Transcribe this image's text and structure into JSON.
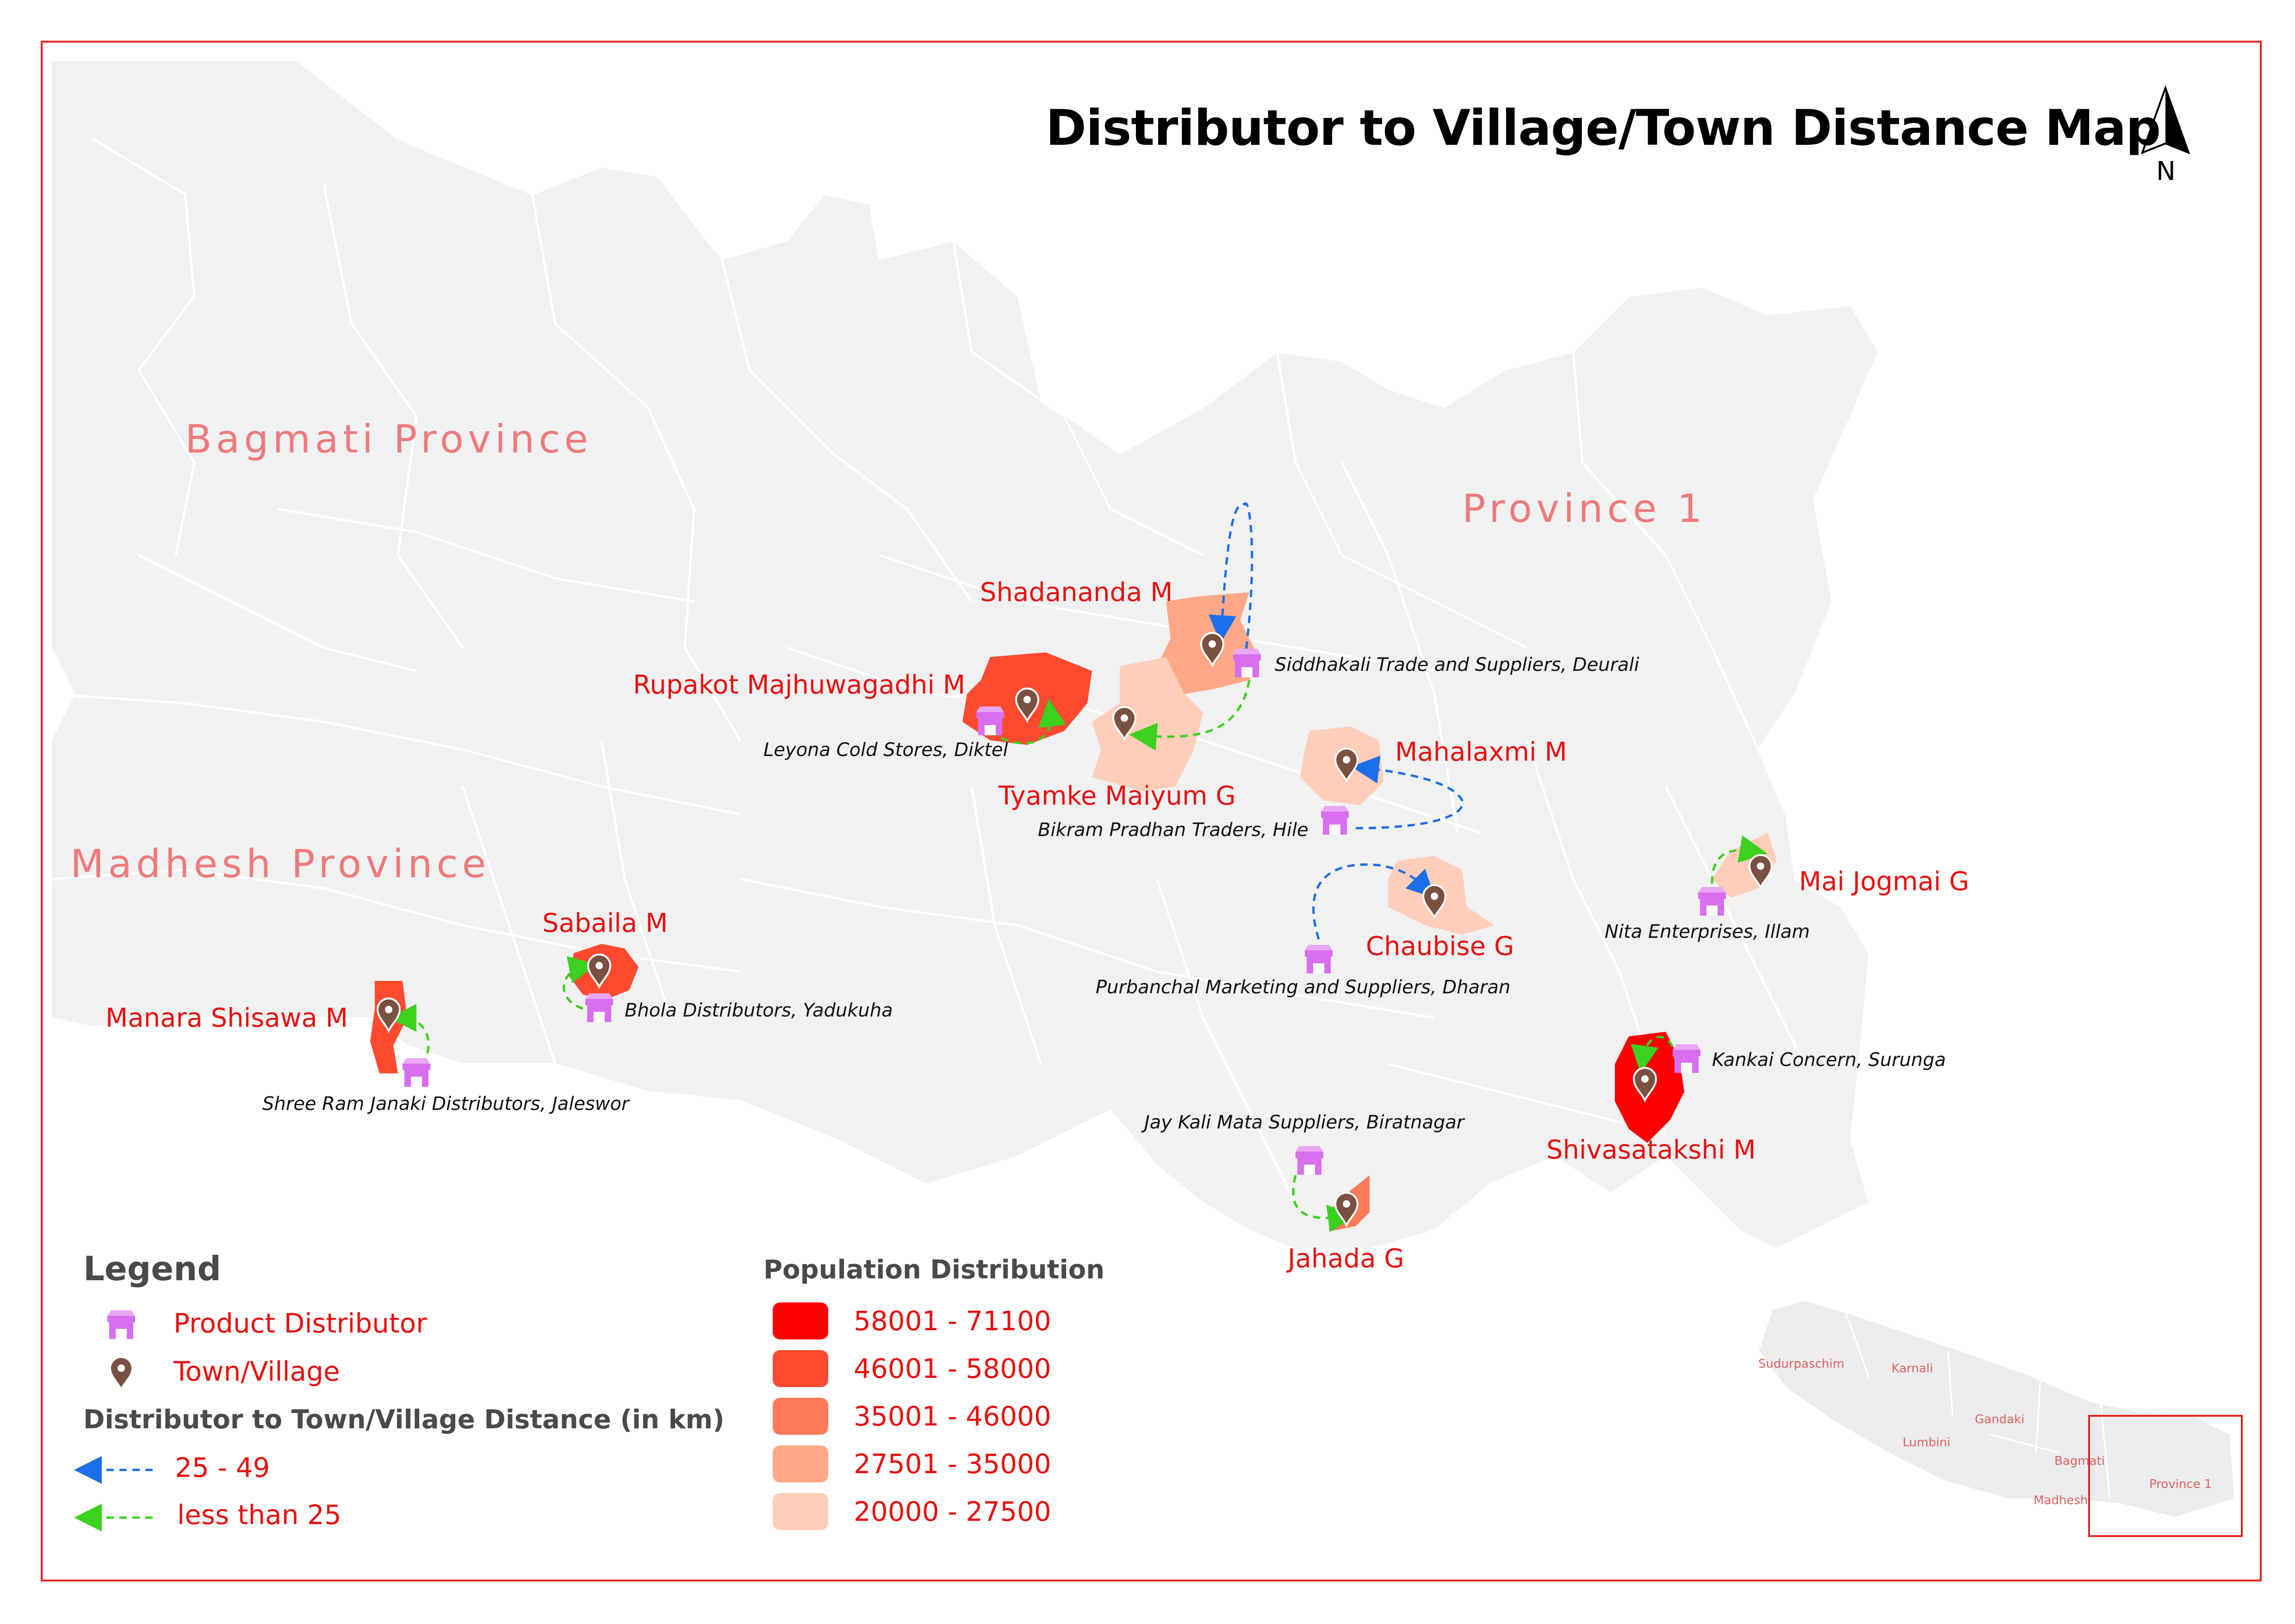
{
  "title": "Distributor to Village/Town Distance Map",
  "north_label": "N",
  "provinces": {
    "bagmati": "Bagmati Province",
    "madhesh": "Madhesh Province",
    "province1": "Province 1"
  },
  "places": {
    "shadananda": "Shadananda M",
    "rupakot": "Rupakot Majhuwagadhi M",
    "tyamke": "Tyamke Maiyum G",
    "mahalaxmi": "Mahalaxmi M",
    "chaubise": "Chaubise G",
    "mai_jogmai": "Mai Jogmai G",
    "sabaila": "Sabaila M",
    "manara": "Manara Shisawa M",
    "shivasatakshi": "Shivasatakshi M",
    "jahada": "Jahada G"
  },
  "distributors": {
    "siddhakali": "Siddhakali Trade and Suppliers, Deurali",
    "leyona": "Leyona Cold Stores, Diktel",
    "bikram": "Bikram Pradhan Traders, Hile",
    "purbanchal": "Purbanchal Marketing and Suppliers, Dharan",
    "nita": "Nita Enterprises, Illam",
    "bhola": "Bhola Distributors, Yadukuha",
    "shree_ram": "Shree Ram Janaki Distributors, Jaleswor",
    "kankai": "Kankai Concern, Surunga",
    "jay_kali": "Jay Kali Mata Suppliers, Biratnagar"
  },
  "legend": {
    "heading": "Legend",
    "product_distributor": "Product Distributor",
    "town_village": "Town/Village",
    "distance_heading": "Distributor to Town/Village Distance (in km)",
    "distance_far": "25 - 49",
    "distance_near": "less than 25",
    "population_heading": "Population Distribution",
    "population_classes": [
      {
        "label": "58001 - 71100",
        "color": "#ff0000"
      },
      {
        "label": "46001 - 58000",
        "color": "#ff4a30"
      },
      {
        "label": "35001 - 46000",
        "color": "#ff7a58"
      },
      {
        "label": "27501 - 35000",
        "color": "#ffa888"
      },
      {
        "label": "20000 - 27500",
        "color": "#ffcdb8"
      }
    ]
  },
  "inset": {
    "sudurpaschim": "Sudurpaschim",
    "karnali": "Karnali",
    "gandaki": "Gandaki",
    "lumbini": "Lumbini",
    "bagmati": "Bagmati",
    "madhesh": "Madhesh",
    "province1": "Province 1"
  },
  "colors": {
    "frame": "#e0231f",
    "land": "#f1f1f1",
    "boundary": "#ffffff",
    "far_arrow": "#1a6fe8",
    "near_arrow": "#3bd11e",
    "distributor_icon": "#d96ef0",
    "village_icon": "#7a5040"
  },
  "icons": {
    "distributor": "store-icon",
    "village": "map-pin-icon",
    "north": "north-arrow-icon"
  }
}
